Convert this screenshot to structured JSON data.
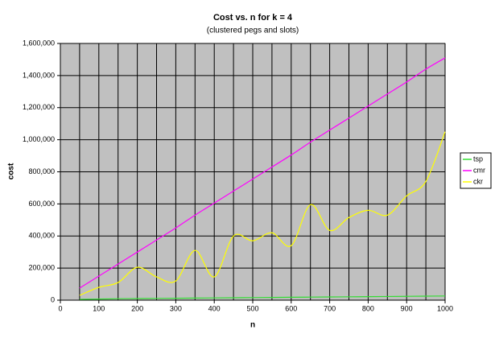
{
  "chart_data": {
    "type": "line",
    "title": "Cost vs. n for k = 4",
    "subtitle": "(clustered pegs and slots)",
    "x_label": "n",
    "y_label": "cost",
    "x": [
      50,
      100,
      150,
      200,
      250,
      300,
      350,
      400,
      450,
      500,
      550,
      600,
      650,
      700,
      750,
      800,
      850,
      900,
      950,
      1000
    ],
    "series": [
      {
        "name": "tsp",
        "color": "#33dd33",
        "values": [
          5000,
          7000,
          9000,
          10000,
          11000,
          12000,
          13000,
          14000,
          15000,
          16000,
          17000,
          18000,
          19000,
          20000,
          21000,
          22000,
          23000,
          24000,
          25000,
          26000
        ]
      },
      {
        "name": "cmr",
        "color": "#ff00ff",
        "values": [
          75000,
          150000,
          225000,
          300000,
          375000,
          450000,
          530000,
          605000,
          680000,
          755000,
          830000,
          905000,
          985000,
          1060000,
          1135000,
          1210000,
          1285000,
          1360000,
          1440000,
          1510000
        ]
      },
      {
        "name": "ckr",
        "color": "#ffff00",
        "values": [
          30000,
          80000,
          110000,
          205000,
          145000,
          120000,
          310000,
          145000,
          400000,
          370000,
          420000,
          340000,
          595000,
          435000,
          515000,
          560000,
          530000,
          650000,
          740000,
          1050000
        ]
      }
    ],
    "xlim": [
      0,
      1000
    ],
    "xticks": [
      0,
      100,
      200,
      300,
      400,
      500,
      600,
      700,
      800,
      900,
      1000
    ],
    "xgrid": [
      50,
      100,
      150,
      200,
      250,
      300,
      350,
      400,
      450,
      500,
      550,
      600,
      650,
      700,
      750,
      800,
      850,
      900,
      950,
      1000
    ],
    "ylim": [
      0,
      1600000
    ],
    "yticks": [
      0,
      {
        "value": 200000,
        "label": "200,000"
      },
      {
        "value": 400000,
        "label": "400,000"
      },
      {
        "value": 600000,
        "label": "600,000"
      },
      {
        "value": 800000,
        "label": "800,000"
      },
      {
        "value": 1000000,
        "label": "1,000,000"
      },
      {
        "value": 1200000,
        "label": "1,200,000"
      },
      {
        "value": 1400000,
        "label": "1,400,000"
      },
      {
        "value": 1600000,
        "label": "1,600,000"
      }
    ],
    "grid": true,
    "legend": "right",
    "background": "#c0c0c0",
    "smooth": true
  }
}
